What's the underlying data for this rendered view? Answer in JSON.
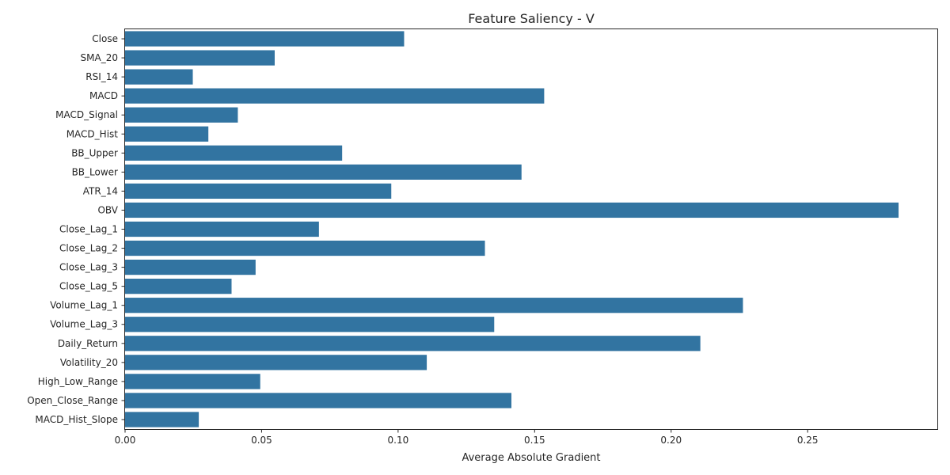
{
  "chart_data": {
    "type": "bar",
    "orientation": "horizontal",
    "title": "Feature Saliency - V",
    "xlabel": "Average Absolute Gradient",
    "ylabel": "",
    "xlim": [
      0,
      0.2975
    ],
    "xticks": [
      0.0,
      0.05,
      0.1,
      0.15,
      0.2,
      0.25
    ],
    "xtick_labels": [
      "0.00",
      "0.05",
      "0.10",
      "0.15",
      "0.20",
      "0.25"
    ],
    "grid": false,
    "bar_color": "#3274a1",
    "categories": [
      "Close",
      "SMA_20",
      "RSI_14",
      "MACD",
      "MACD_Signal",
      "MACD_Hist",
      "BB_Upper",
      "BB_Lower",
      "ATR_14",
      "OBV",
      "Close_Lag_1",
      "Close_Lag_2",
      "Close_Lag_3",
      "Close_Lag_5",
      "Volume_Lag_1",
      "Volume_Lag_3",
      "Daily_Return",
      "Volatility_20",
      "High_Low_Range",
      "Open_Close_Range",
      "MACD_Hist_Slope"
    ],
    "values": [
      0.1022,
      0.0548,
      0.0248,
      0.1535,
      0.0413,
      0.0305,
      0.0795,
      0.1452,
      0.0975,
      0.2833,
      0.071,
      0.1318,
      0.0478,
      0.039,
      0.2263,
      0.1352,
      0.2107,
      0.1105,
      0.0495,
      0.1415,
      0.027
    ]
  }
}
